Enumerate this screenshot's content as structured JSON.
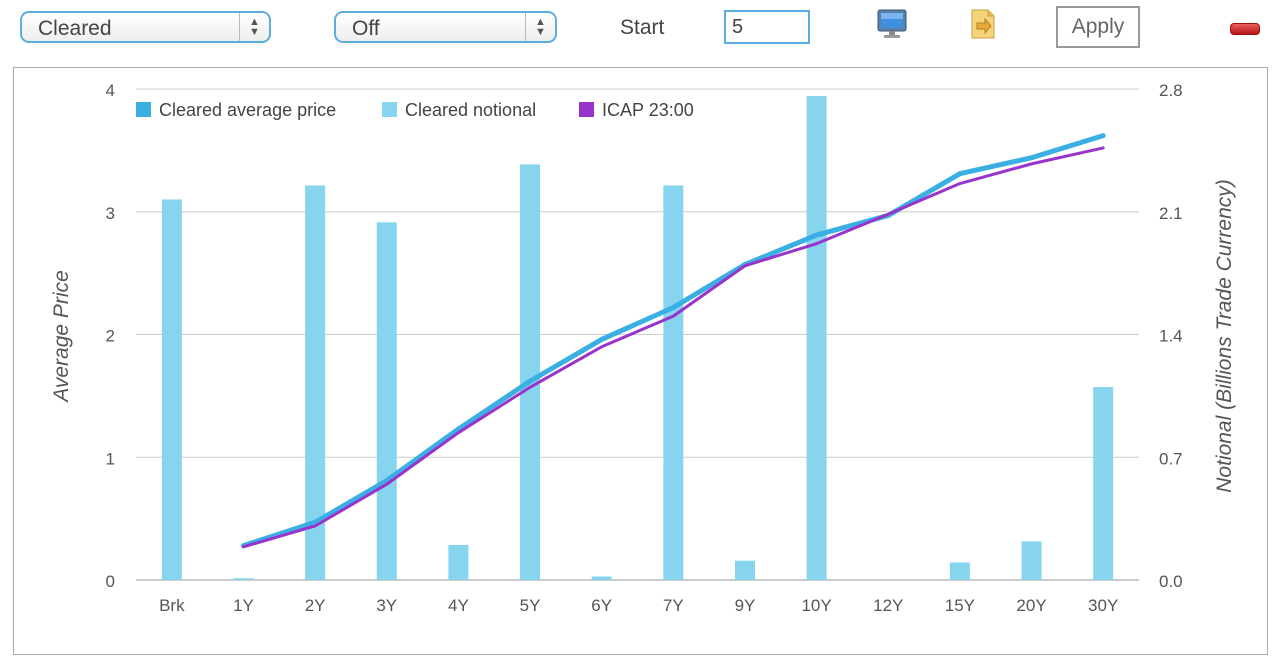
{
  "toolbar": {
    "series_select": "Cleared",
    "mode_select": "Off",
    "start_label": "Start",
    "start_value": "5",
    "apply_label": "Apply",
    "monitor_icon": "monitor-icon",
    "export_icon": "document-export-icon",
    "remove_icon": "remove-icon"
  },
  "colors": {
    "accent_border": "#5aaee0",
    "cleared_average_price": "#3aafe3",
    "cleared_notional": "#87d4ef",
    "icap": "#9933cc",
    "grid": "#cccccc"
  },
  "chart_data": {
    "type": "bar",
    "categories": [
      "Brk",
      "1Y",
      "2Y",
      "3Y",
      "4Y",
      "5Y",
      "6Y",
      "7Y",
      "9Y",
      "10Y",
      "12Y",
      "15Y",
      "20Y",
      "30Y"
    ],
    "title": "",
    "xlabel": "",
    "ylabel": "Average Price",
    "y2label": "Notional (Billions Trade Currency)",
    "ylim": [
      0,
      4
    ],
    "y2lim": [
      0,
      2.8
    ],
    "yticks": [
      "0",
      "1",
      "2",
      "3",
      "4"
    ],
    "y2ticks": [
      "0.0",
      "0.7",
      "1.4",
      "2.1",
      "2.8"
    ],
    "grid": true,
    "legend_position": "top-left",
    "series": [
      {
        "name": "Cleared average price",
        "type": "line",
        "axis": "left",
        "values": [
          null,
          0.28,
          0.47,
          0.81,
          1.23,
          1.62,
          1.96,
          2.22,
          2.57,
          2.81,
          2.97,
          3.31,
          3.44,
          3.62
        ]
      },
      {
        "name": "Cleared notional",
        "type": "bar",
        "axis": "right",
        "values": [
          2.17,
          0.01,
          2.25,
          2.04,
          0.2,
          2.37,
          0.02,
          2.25,
          0.11,
          2.76,
          0.0,
          0.1,
          0.22,
          1.1
        ]
      },
      {
        "name": "ICAP 23:00",
        "type": "line",
        "axis": "left",
        "values": [
          null,
          0.27,
          0.44,
          0.78,
          1.2,
          1.57,
          1.9,
          2.15,
          2.56,
          2.74,
          2.98,
          3.23,
          3.39,
          3.52
        ]
      }
    ]
  }
}
